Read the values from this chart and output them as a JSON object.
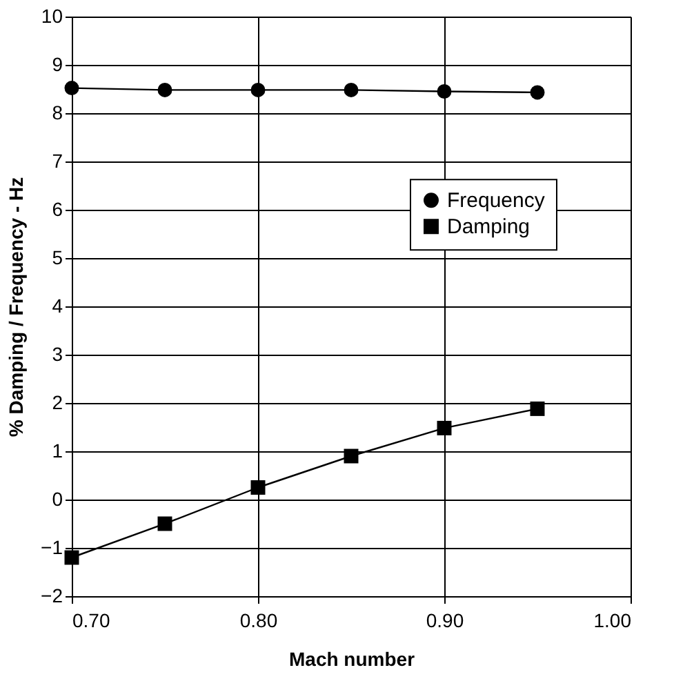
{
  "chart_data": {
    "type": "line",
    "xlabel": "Mach number",
    "ylabel": "% Damping / Frequency - Hz",
    "x": [
      0.7,
      0.75,
      0.8,
      0.85,
      0.9,
      0.95
    ],
    "series": [
      {
        "name": "Frequency",
        "color": "#000000",
        "marker": "circle",
        "values": [
          8.52,
          8.48,
          8.48,
          8.48,
          8.45,
          8.43
        ]
      },
      {
        "name": "Damping",
        "color": "#000000",
        "marker": "square",
        "values": [
          -1.2,
          -0.5,
          0.25,
          0.9,
          1.48,
          1.88
        ]
      }
    ],
    "xlim": [
      0.7,
      1.0
    ],
    "xticks": [
      {
        "value": 0.7,
        "label": "0.70"
      },
      {
        "value": 0.8,
        "label": "0.80"
      },
      {
        "value": 0.9,
        "label": "0.90"
      },
      {
        "value": 1.0,
        "label": "1.00"
      }
    ],
    "ylim": [
      -2,
      10
    ],
    "yticks": [
      -2,
      -1,
      0,
      1,
      2,
      3,
      4,
      5,
      6,
      7,
      8,
      9,
      10
    ],
    "grid": true,
    "legend": "right",
    "line_style": "solid"
  }
}
